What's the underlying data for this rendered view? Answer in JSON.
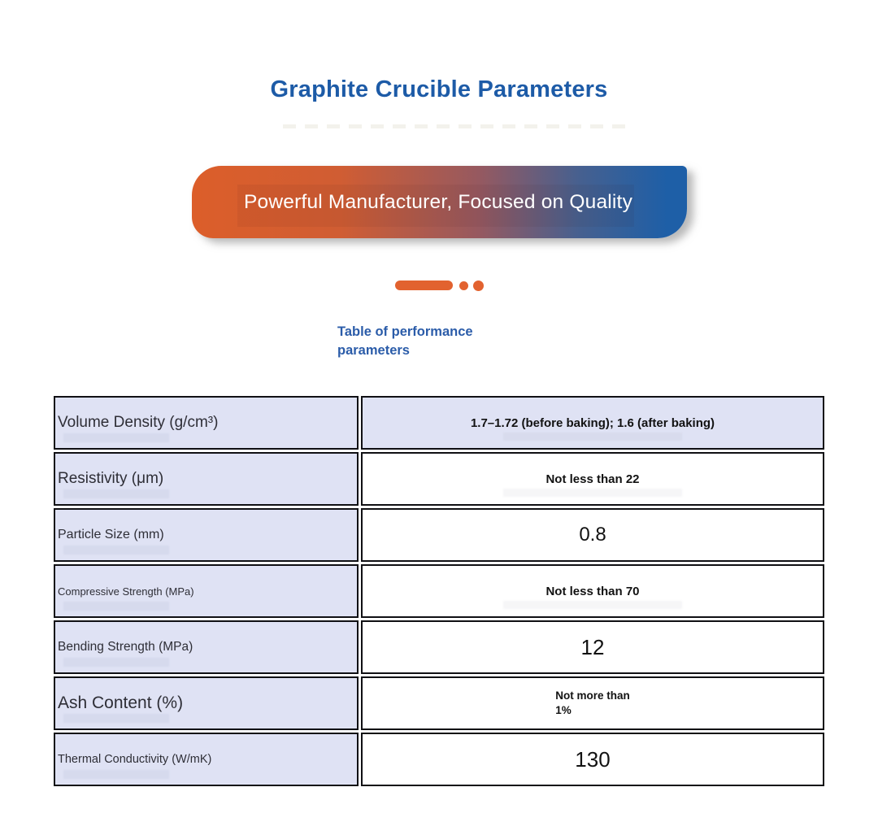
{
  "page": {
    "title": "Graphite Crucible Parameters"
  },
  "banner": {
    "text": "Powerful Manufacturer, Focused on Quality"
  },
  "section": {
    "label": "Table of performance parameters"
  },
  "table": {
    "rows": [
      {
        "param": "Volume Density (g/cm³)",
        "value": "1.7–1.72 (before baking); 1.6 (after baking)"
      },
      {
        "param": "Resistivity (μm)",
        "value": "Not less than 22"
      },
      {
        "param": "Particle Size (mm)",
        "value": "0.8"
      },
      {
        "param": "Compressive Strength (MPa)",
        "value": "Not less than 70"
      },
      {
        "param": "Bending Strength (MPa)",
        "value": "12"
      },
      {
        "param": "Ash Content (%)",
        "value": "Not more than\n1%"
      },
      {
        "param": "Thermal Conductivity (W/mK)",
        "value": "130"
      }
    ]
  },
  "colors": {
    "accent_orange": "#e2622f",
    "brand_blue": "#1d5ba7",
    "banner_gradient_start": "#dc5e2a",
    "banner_gradient_end": "#1e5fa7",
    "cell_background": "#dfe2f4"
  }
}
